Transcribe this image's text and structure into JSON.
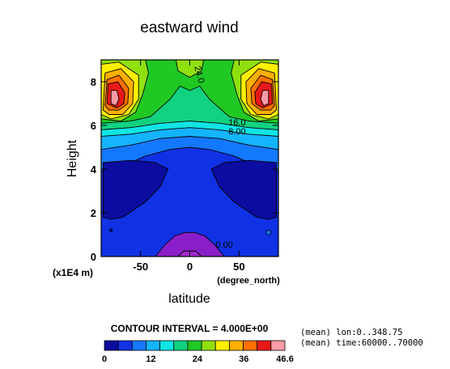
{
  "chart_data": {
    "type": "heatmap",
    "title": "eastward wind",
    "xlabel": "latitude",
    "ylabel": "Height",
    "x_units": "(degree_north)",
    "y_units": "(x1E4 m)",
    "xlim": [
      -90,
      90
    ],
    "ylim": [
      0,
      9
    ],
    "x_ticks": [
      {
        "v": -50,
        "label": "-50"
      },
      {
        "v": 0,
        "label": "0"
      },
      {
        "v": 50,
        "label": "50"
      }
    ],
    "y_ticks": [
      {
        "v": 0,
        "label": "0"
      },
      {
        "v": 2,
        "label": "2"
      },
      {
        "v": 4,
        "label": "4"
      },
      {
        "v": 6,
        "label": "6"
      },
      {
        "v": 8,
        "label": "8"
      }
    ],
    "contour_labels": [
      {
        "text": "24.0",
        "lat": 7,
        "h": 8.3
      },
      {
        "text": "16.0",
        "lat": 48,
        "h": 6.0
      },
      {
        "text": "8.00",
        "lat": 48,
        "h": 5.6
      },
      {
        "text": "0.00",
        "lat": 35,
        "h": 0.4
      }
    ],
    "contour_interval": "CONTOUR INTERVAL = 4.000E+00",
    "colorbar": {
      "colors": [
        "#0c0ca0",
        "#1032e4",
        "#1478ff",
        "#14b4ff",
        "#10e4e4",
        "#10d280",
        "#20c824",
        "#90e010",
        "#fff000",
        "#ffb000",
        "#ff7000",
        "#e81818",
        "#ff9aa8"
      ],
      "tick_labels": [
        "0",
        "12",
        "24",
        "36",
        "46.6"
      ]
    },
    "annotations": [
      "(mean) lon:0..348.75",
      "(mean) time:60000..70000"
    ]
  }
}
